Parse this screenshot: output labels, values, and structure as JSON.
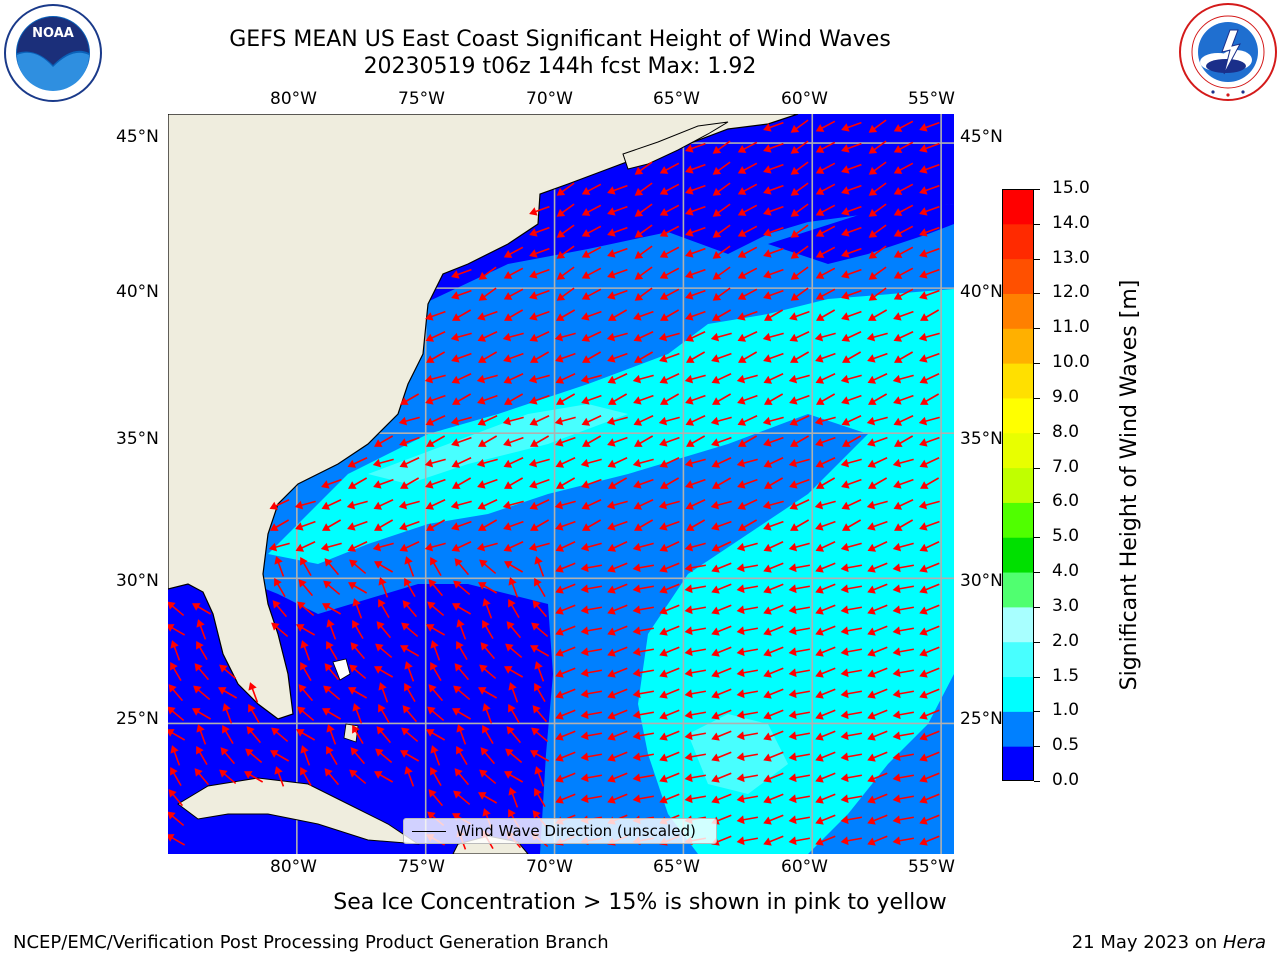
{
  "title": {
    "line1": "GEFS MEAN US East Coast Significant Height of Wind Waves",
    "line2": "20230519 t06z 144h fcst   Max: 1.92"
  },
  "logos": {
    "noaa": {
      "text": "NOAA",
      "ring_text": "NATIONAL OCEANIC AND ATMOSPHERIC ADMINISTRATION · U.S. DEPARTMENT OF COMMERCE"
    },
    "nws": {
      "ring_text": "NATIONAL WEATHER SERVICE"
    }
  },
  "map": {
    "lon_ticks": [
      "80°W",
      "75°W",
      "70°W",
      "65°W",
      "60°W",
      "55°W"
    ],
    "lat_ticks": [
      "45°N",
      "40°N",
      "35°N",
      "30°N",
      "25°N"
    ],
    "lon_range": [
      -85,
      -54.5
    ],
    "lat_range": [
      20.5,
      46
    ],
    "legend": "Wind Wave Direction (unscaled)",
    "gridlines": true,
    "colors": {
      "land": "#efedde",
      "coast": "#000000",
      "arrow": "#ff0000",
      "grid": "#b0b0b0"
    }
  },
  "colorbar": {
    "label": "Significant Height of Wind Waves [m]",
    "ticks": [
      "0.0",
      "0.5",
      "1.0",
      "1.5",
      "2.0",
      "3.0",
      "4.0",
      "5.0",
      "6.0",
      "7.0",
      "8.0",
      "9.0",
      "10.0",
      "11.0",
      "12.0",
      "13.0",
      "14.0",
      "15.0"
    ],
    "colors": [
      "#0000ff",
      "#0080ff",
      "#00ffff",
      "#48ffff",
      "#a8ffff",
      "#50ff70",
      "#00e000",
      "#50ff00",
      "#c0ff00",
      "#e8ff00",
      "#ffff00",
      "#ffe000",
      "#ffb000",
      "#ff8000",
      "#ff5000",
      "#ff2a00",
      "#ff0000"
    ]
  },
  "footer": {
    "sea_ice": "Sea Ice Concentration > 15% is shown in pink to yellow",
    "left": "NCEP/EMC/Verification Post Processing Product Generation Branch",
    "date": "21 May 2023 on ",
    "machine": "Hera"
  }
}
